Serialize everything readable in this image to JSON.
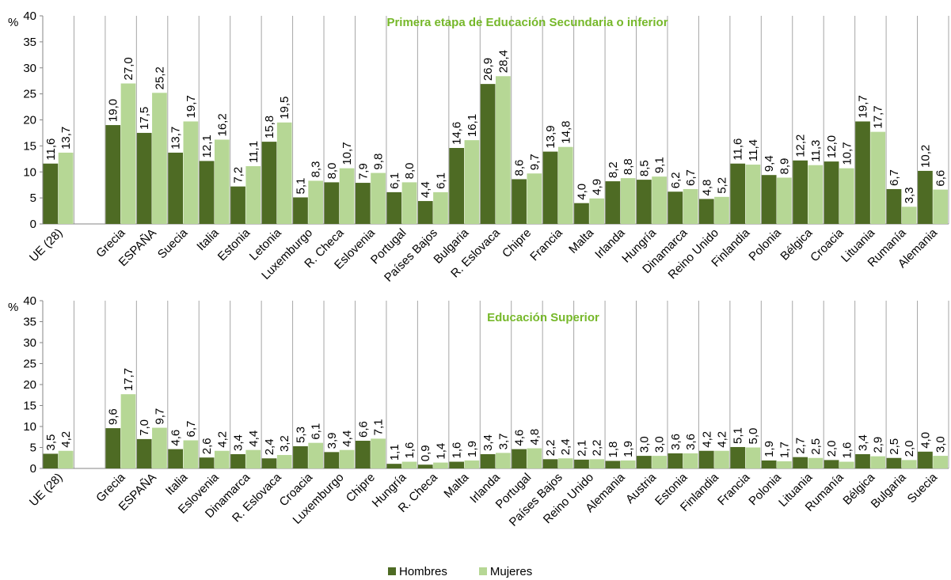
{
  "legend": {
    "hombres_label": "Hombres",
    "mujeres_label": "Mujeres"
  },
  "colors": {
    "hombres": "#4e6b24",
    "mujeres": "#b6d795",
    "title": "#76b82a"
  },
  "chart_data": [
    {
      "type": "bar",
      "title": "Primera etapa de Educación Secundaria o inferior",
      "ylabel": "%",
      "ylim": [
        0,
        40
      ],
      "yticks": [
        0,
        5,
        10,
        15,
        20,
        25,
        30,
        35,
        40
      ],
      "categories": [
        "UE (28)",
        "",
        "Grecia",
        "ESPAÑA",
        "Suecia",
        "Italia",
        "Estonia",
        "Letonia",
        "Luxemburgo",
        "R. Checa",
        "Eslovenia",
        "Portugal",
        "Países Bajos",
        "Bulgaria",
        "R. Eslovaca",
        "Chipre",
        "Francia",
        "Malta",
        "Irlanda",
        "Hungría",
        "Dinamarca",
        "Reino Unido",
        "Finlandia",
        "Polonia",
        "Bélgica",
        "Croacia",
        "Lituania",
        "Rumanía",
        "Alemania"
      ],
      "series": [
        {
          "name": "Hombres",
          "values": [
            11.6,
            null,
            19.0,
            17.5,
            13.7,
            12.1,
            7.2,
            15.8,
            5.1,
            8.0,
            7.9,
            6.1,
            4.4,
            14.6,
            26.9,
            8.6,
            13.9,
            4.0,
            8.2,
            8.5,
            6.2,
            4.8,
            11.6,
            9.4,
            12.2,
            12.0,
            19.7,
            6.7,
            10.2
          ],
          "labels": [
            "11,6",
            "",
            "19,0",
            "17,5",
            "13,7",
            "12,1",
            "7,2",
            "15,8",
            "5,1",
            "8,0",
            "7,9",
            "6,1",
            "4,4",
            "14,6",
            "26,9",
            "8,6",
            "13,9",
            "4,0",
            "8,2",
            "8,5",
            "6,2",
            "4,8",
            "11,6",
            "9,4",
            "12,2",
            "12,0",
            "19,7",
            "6,7",
            "10,2"
          ]
        },
        {
          "name": "Mujeres",
          "values": [
            13.7,
            null,
            27.0,
            25.2,
            19.7,
            16.2,
            11.1,
            19.5,
            8.3,
            10.7,
            9.8,
            8.0,
            6.1,
            16.1,
            28.4,
            9.7,
            14.8,
            4.9,
            8.8,
            9.1,
            6.7,
            5.2,
            11.4,
            8.9,
            11.3,
            10.7,
            17.7,
            3.3,
            6.6
          ],
          "labels": [
            "13,7",
            "",
            "27,0",
            "25,2",
            "19,7",
            "16,2",
            "11,1",
            "19,5",
            "8,3",
            "10,7",
            "9,8",
            "8,0",
            "6,1",
            "16,1",
            "28,4",
            "9,7",
            "14,8",
            "4,9",
            "8,8",
            "9,1",
            "6,7",
            "5,2",
            "11,4",
            "8,9",
            "11,3",
            "10,7",
            "17,7",
            "3,3",
            "6,6"
          ]
        }
      ]
    },
    {
      "type": "bar",
      "title": "Educación Superior",
      "ylabel": "%",
      "ylim": [
        0,
        40
      ],
      "yticks": [
        0,
        5,
        10,
        15,
        20,
        25,
        30,
        35,
        40
      ],
      "categories": [
        "UE (28)",
        "",
        "Grecia",
        "ESPAÑA",
        "Italia",
        "Eslovenia",
        "Dinamarca",
        "R. Eslovaca",
        "Croacia",
        "Luxemburgo",
        "Chipre",
        "Hungría",
        "R. Checa",
        "Malta",
        "Irlanda",
        "Portugal",
        "Países Bajos",
        "Reino Unido",
        "Alemania",
        "Austria",
        "Estonia",
        "Finlandia",
        "Francia",
        "Polonia",
        "Lituania",
        "Rumanía",
        "Bélgica",
        "Bulgaria",
        "Suecia"
      ],
      "series": [
        {
          "name": "Hombres",
          "values": [
            3.5,
            null,
            9.6,
            7.0,
            4.6,
            2.6,
            3.4,
            2.4,
            5.3,
            3.9,
            6.6,
            1.1,
            0.9,
            1.6,
            3.4,
            4.6,
            2.2,
            2.1,
            1.8,
            3.0,
            3.6,
            4.2,
            5.1,
            1.9,
            2.7,
            2.0,
            3.4,
            2.5,
            4.0
          ],
          "labels": [
            "3,5",
            "",
            "9,6",
            "7,0",
            "4,6",
            "2,6",
            "3,4",
            "2,4",
            "5,3",
            "3,9",
            "6,6",
            "1,1",
            "0,9",
            "1,6",
            "3,4",
            "4,6",
            "2,2",
            "2,1",
            "1,8",
            "3,0",
            "3,6",
            "4,2",
            "5,1",
            "1,9",
            "2,7",
            "2,0",
            "3,4",
            "2,5",
            "4,0"
          ]
        },
        {
          "name": "Mujeres",
          "values": [
            4.2,
            null,
            17.7,
            9.7,
            6.7,
            4.2,
            4.4,
            3.2,
            6.1,
            4.4,
            7.1,
            1.6,
            1.4,
            1.9,
            3.7,
            4.8,
            2.4,
            2.2,
            1.9,
            3.0,
            3.6,
            4.2,
            5.0,
            1.7,
            2.5,
            1.6,
            2.9,
            2.0,
            3.0
          ],
          "labels": [
            "4,2",
            "",
            "17,7",
            "9,7",
            "6,7",
            "4,2",
            "4,4",
            "3,2",
            "6,1",
            "4,4",
            "7,1",
            "1,6",
            "1,4",
            "1,9",
            "3,7",
            "4,8",
            "2,4",
            "2,2",
            "1,9",
            "3,0",
            "3,6",
            "4,2",
            "5,0",
            "1,7",
            "2,5",
            "1,6",
            "2,9",
            "2,0",
            "3,0"
          ]
        }
      ]
    }
  ]
}
